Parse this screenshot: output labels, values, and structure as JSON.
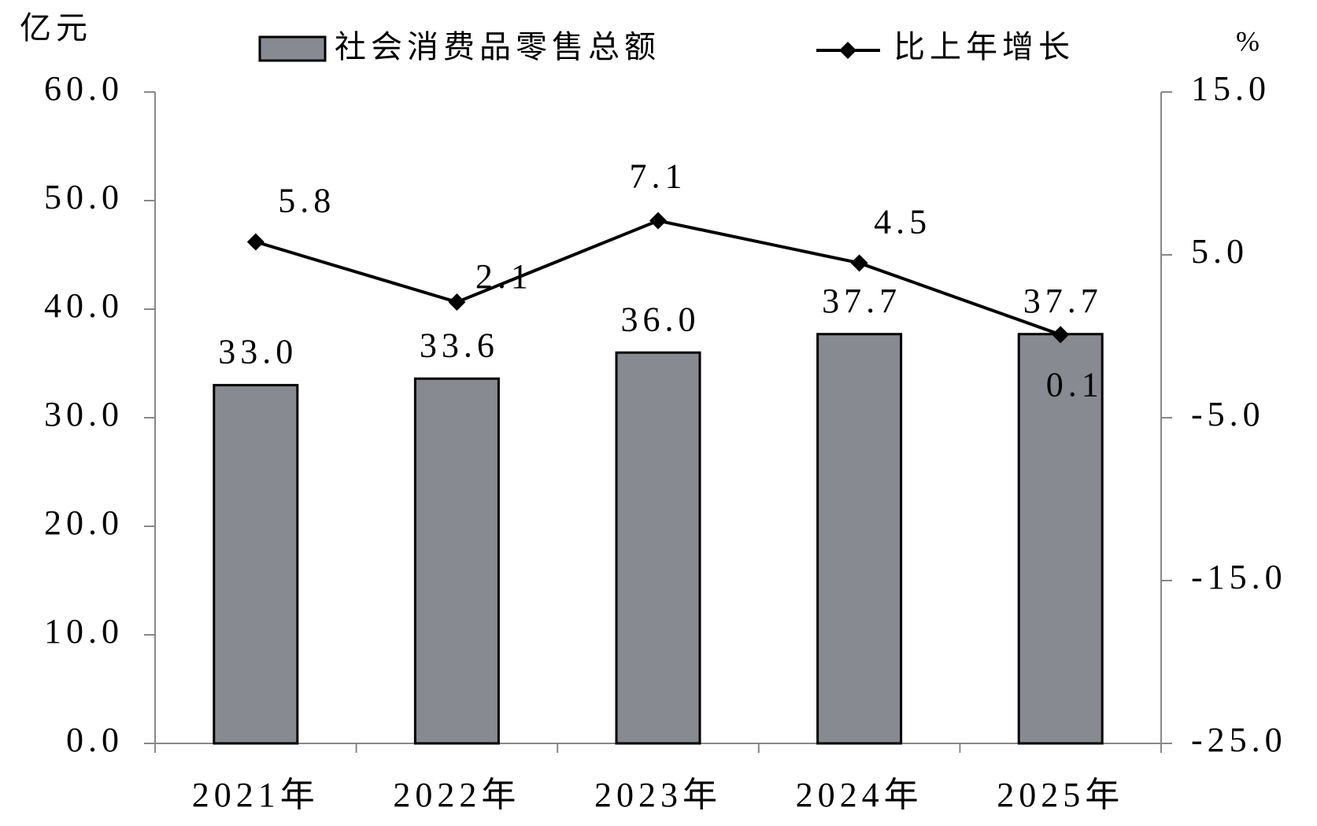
{
  "chart_data": {
    "type": "bar-line",
    "y_label": "亿元",
    "y2_label": "%",
    "categories": [
      "2021年",
      "2022年",
      "2023年",
      "2024年",
      "2025年"
    ],
    "series": [
      {
        "name": "社会消费品零售总额",
        "type": "bar",
        "color": "#878a90",
        "values": [
          33.0,
          33.6,
          36.0,
          37.7,
          37.7
        ],
        "value_labels": [
          "33.0",
          "33.6",
          "36.0",
          "37.7",
          "37.7"
        ]
      },
      {
        "name": "比上年增长",
        "type": "line",
        "axis": "y2",
        "color": "#000000",
        "values": [
          5.8,
          2.1,
          7.1,
          4.5,
          0.1
        ]
      }
    ],
    "ylim": [
      0,
      60
    ],
    "yticks": [
      {
        "value": 0,
        "label": "0.0"
      },
      {
        "value": 10,
        "label": "10.0"
      },
      {
        "value": 20,
        "label": "20.0"
      },
      {
        "value": 30,
        "label": "30.0"
      },
      {
        "value": 40,
        "label": "40.0"
      },
      {
        "value": 50,
        "label": "50.0"
      },
      {
        "value": 60,
        "label": "60.0"
      }
    ],
    "y2lim": [
      -25,
      15
    ],
    "y2ticks": [
      {
        "value": -25,
        "label": "-25.0"
      },
      {
        "value": -15,
        "label": "-15.0"
      },
      {
        "value": -5,
        "label": "-5.0"
      },
      {
        "value": 5,
        "label": "5.0"
      },
      {
        "value": 15,
        "label": "15.0"
      }
    ],
    "grid": false
  }
}
